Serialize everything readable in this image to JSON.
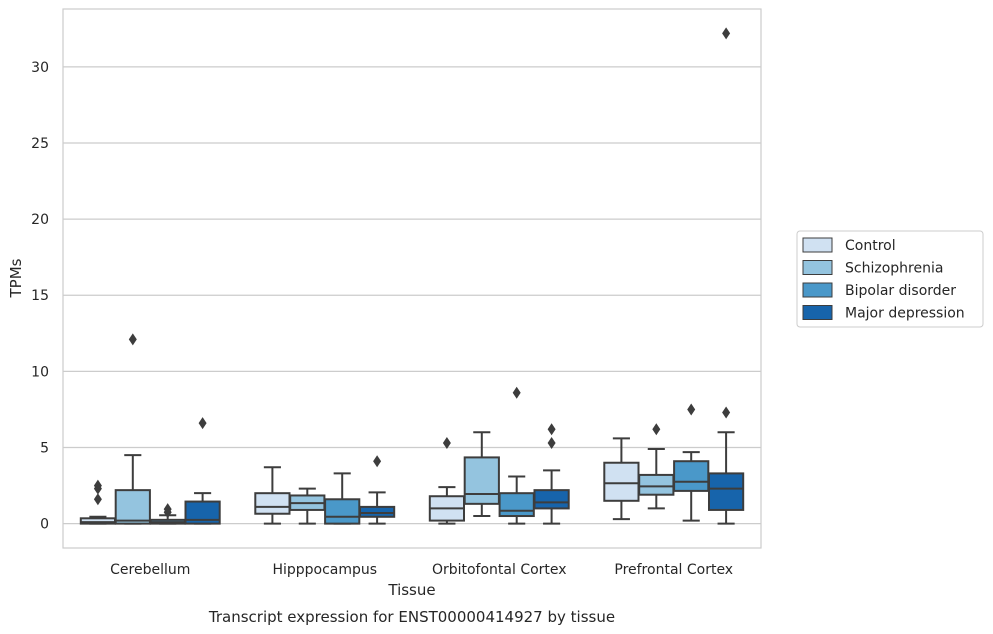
{
  "chart_data": {
    "type": "box",
    "title": "Transcript expression for ENST00000414927 by tissue",
    "xlabel": "Tissue",
    "ylabel": "TPMs",
    "ylim": [
      -1.6,
      33.8
    ],
    "yticks": [
      0,
      5,
      10,
      15,
      20,
      25,
      30
    ],
    "grid": "horizontal",
    "legend_position": "right",
    "categories": [
      "Cerebellum",
      "Hipppocampus",
      "Orbitofontal Cortex",
      "Prefrontal Cortex"
    ],
    "series": [
      {
        "name": "Control",
        "color": "#d0e1f2",
        "boxes": [
          {
            "whisker_low": 0.0,
            "q1": 0.0,
            "median": 0.1,
            "q3": 0.35,
            "whisker_high": 0.45,
            "outliers": [
              1.6,
              2.3,
              2.5
            ]
          },
          {
            "whisker_low": 0.0,
            "q1": 0.65,
            "median": 1.1,
            "q3": 2.0,
            "whisker_high": 3.7,
            "outliers": []
          },
          {
            "whisker_low": 0.0,
            "q1": 0.2,
            "median": 1.0,
            "q3": 1.8,
            "whisker_high": 2.4,
            "outliers": [
              5.3
            ]
          },
          {
            "whisker_low": 0.3,
            "q1": 1.5,
            "median": 2.65,
            "q3": 4.0,
            "whisker_high": 5.6,
            "outliers": []
          }
        ]
      },
      {
        "name": "Schizophrenia",
        "color": "#94c4df",
        "boxes": [
          {
            "whisker_low": 0.0,
            "q1": 0.0,
            "median": 0.2,
            "q3": 2.2,
            "whisker_high": 4.5,
            "outliers": [
              12.1
            ]
          },
          {
            "whisker_low": 0.0,
            "q1": 0.9,
            "median": 1.35,
            "q3": 1.85,
            "whisker_high": 2.3,
            "outliers": []
          },
          {
            "whisker_low": 0.5,
            "q1": 1.3,
            "median": 1.95,
            "q3": 4.35,
            "whisker_high": 6.0,
            "outliers": []
          },
          {
            "whisker_low": 1.0,
            "q1": 1.9,
            "median": 2.45,
            "q3": 3.2,
            "whisker_high": 4.9,
            "outliers": [
              6.2
            ]
          }
        ]
      },
      {
        "name": "Bipolar disorder",
        "color": "#4a98c9",
        "boxes": [
          {
            "whisker_low": 0.0,
            "q1": 0.0,
            "median": 0.1,
            "q3": 0.25,
            "whisker_high": 0.55,
            "outliers": [
              0.75,
              0.95
            ]
          },
          {
            "whisker_low": 0.0,
            "q1": 0.0,
            "median": 0.45,
            "q3": 1.6,
            "whisker_high": 3.3,
            "outliers": []
          },
          {
            "whisker_low": 0.0,
            "q1": 0.5,
            "median": 0.85,
            "q3": 2.0,
            "whisker_high": 3.1,
            "outliers": [
              8.6
            ]
          },
          {
            "whisker_low": 0.2,
            "q1": 2.15,
            "median": 2.75,
            "q3": 4.1,
            "whisker_high": 4.7,
            "outliers": [
              7.5
            ]
          }
        ]
      },
      {
        "name": "Major depression",
        "color": "#1764ab",
        "boxes": [
          {
            "whisker_low": 0.0,
            "q1": 0.0,
            "median": 0.25,
            "q3": 1.45,
            "whisker_high": 2.0,
            "outliers": [
              6.6
            ]
          },
          {
            "whisker_low": 0.0,
            "q1": 0.45,
            "median": 0.7,
            "q3": 1.1,
            "whisker_high": 2.05,
            "outliers": [
              4.1
            ]
          },
          {
            "whisker_low": 0.0,
            "q1": 1.0,
            "median": 1.4,
            "q3": 2.2,
            "whisker_high": 3.5,
            "outliers": [
              5.3,
              6.2
            ]
          },
          {
            "whisker_low": 0.0,
            "q1": 0.9,
            "median": 2.3,
            "q3": 3.3,
            "whisker_high": 6.0,
            "outliers": [
              7.3,
              32.2
            ]
          }
        ]
      }
    ]
  }
}
